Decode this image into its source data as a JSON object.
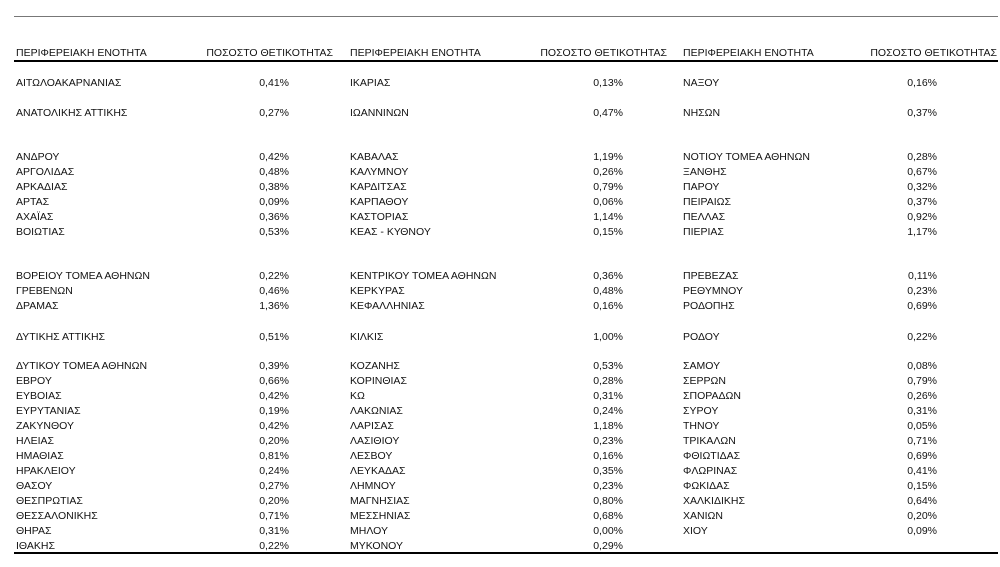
{
  "headers": [
    {
      "region": "ΠΕΡΙΦΕΡΕΙΑΚΗ ΕΝΟΤΗΤΑ",
      "rate": "ΠΟΣΟΣΤΟ ΘΕΤΙΚΟΤΗΤΑΣ"
    },
    {
      "region": "ΠΕΡΙΦΕΡΕΙΑΚΗ ΕΝΟΤΗΤΑ",
      "rate": "ΠΟΣΟΣΤΟ ΘΕΤΙΚΟΤΗΤΑΣ"
    },
    {
      "region": "ΠΕΡΙΦΕΡΕΙΑΚΗ ΕΝΟΤΗΤΑ",
      "rate": "ΠΟΣΟΣΤΟ ΘΕΤΙΚΟΤΗΤΑΣ"
    }
  ],
  "blocks": [
    [
      [
        [
          "ΑΙΤΩΛΟΑΚΑΡΝΑΝΙΑΣ",
          "0,41%"
        ],
        [
          "ΙΚΑΡΙΑΣ",
          "0,13%"
        ],
        [
          "ΝΑΞΟΥ",
          "0,16%"
        ]
      ]
    ],
    [
      [
        [
          "ΑΝΑΤΟΛΙΚΗΣ ΑΤΤΙΚΗΣ",
          "0,27%"
        ],
        [
          "ΙΩΑΝΝΙΝΩΝ",
          "0,47%"
        ],
        [
          "ΝΗΣΩΝ",
          "0,37%"
        ]
      ]
    ],
    [
      [
        [
          "ΑΝΔΡΟΥ",
          "0,42%"
        ],
        [
          "ΚΑΒΑΛΑΣ",
          "1,19%"
        ],
        [
          "ΝΟΤΙΟΥ ΤΟΜΕΑ ΑΘΗΝΩΝ",
          "0,28%"
        ]
      ],
      [
        [
          "ΑΡΓΟΛΙΔΑΣ",
          "0,48%"
        ],
        [
          "ΚΑΛΥΜΝΟΥ",
          "0,26%"
        ],
        [
          "ΞΑΝΘΗΣ",
          "0,67%"
        ]
      ],
      [
        [
          "ΑΡΚΑΔΙΑΣ",
          "0,38%"
        ],
        [
          "ΚΑΡΔΙΤΣΑΣ",
          "0,79%"
        ],
        [
          "ΠΑΡΟΥ",
          "0,32%"
        ]
      ],
      [
        [
          "ΑΡΤΑΣ",
          "0,09%"
        ],
        [
          "ΚΑΡΠΑΘΟΥ",
          "0,06%"
        ],
        [
          "ΠΕΙΡΑΙΩΣ",
          "0,37%"
        ]
      ],
      [
        [
          "ΑΧΑΪΑΣ",
          "0,36%"
        ],
        [
          "ΚΑΣΤΟΡΙΑΣ",
          "1,14%"
        ],
        [
          "ΠΕΛΛΑΣ",
          "0,92%"
        ]
      ],
      [
        [
          "ΒΟΙΩΤΙΑΣ",
          "0,53%"
        ],
        [
          "ΚΕΑΣ - ΚΥΘΝΟΥ",
          "0,15%"
        ],
        [
          "ΠΙΕΡΙΑΣ",
          "1,17%"
        ]
      ]
    ],
    [
      [
        [
          "ΒΟΡΕΙΟΥ ΤΟΜΕΑ ΑΘΗΝΩΝ",
          "0,22%"
        ],
        [
          "ΚΕΝΤΡΙΚΟΥ ΤΟΜΕΑ ΑΘΗΝΩΝ",
          "0,36%"
        ],
        [
          "ΠΡΕΒΕΖΑΣ",
          "0,11%"
        ]
      ],
      [
        [
          "ΓΡΕΒΕΝΩΝ",
          "0,46%"
        ],
        [
          "ΚΕΡΚΥΡΑΣ",
          "0,48%"
        ],
        [
          "ΡΕΘΥΜΝΟΥ",
          "0,23%"
        ]
      ],
      [
        [
          "ΔΡΑΜΑΣ",
          "1,36%"
        ],
        [
          "ΚΕΦΑΛΛΗΝΙΑΣ",
          "0,16%"
        ],
        [
          "ΡΟΔΟΠΗΣ",
          "0,69%"
        ]
      ]
    ],
    [
      [
        [
          "ΔΥΤΙΚΗΣ ΑΤΤΙΚΗΣ",
          "0,51%"
        ],
        [
          "ΚΙΛΚΙΣ",
          "1,00%"
        ],
        [
          "ΡΟΔΟΥ",
          "0,22%"
        ]
      ]
    ],
    [
      [
        [
          "ΔΥΤΙΚΟΥ ΤΟΜΕΑ ΑΘΗΝΩΝ",
          "0,39%"
        ],
        [
          "ΚΟΖΑΝΗΣ",
          "0,53%"
        ],
        [
          "ΣΑΜΟΥ",
          "0,08%"
        ]
      ],
      [
        [
          "ΕΒΡΟΥ",
          "0,66%"
        ],
        [
          "ΚΟΡΙΝΘΙΑΣ",
          "0,28%"
        ],
        [
          "ΣΕΡΡΩΝ",
          "0,79%"
        ]
      ],
      [
        [
          "ΕΥΒΟΙΑΣ",
          "0,42%"
        ],
        [
          "ΚΩ",
          "0,31%"
        ],
        [
          "ΣΠΟΡΑΔΩΝ",
          "0,26%"
        ]
      ],
      [
        [
          "ΕΥΡΥΤΑΝΙΑΣ",
          "0,19%"
        ],
        [
          "ΛΑΚΩΝΙΑΣ",
          "0,24%"
        ],
        [
          "ΣΥΡΟΥ",
          "0,31%"
        ]
      ],
      [
        [
          "ΖΑΚΥΝΘΟΥ",
          "0,42%"
        ],
        [
          "ΛΑΡΙΣΑΣ",
          "1,18%"
        ],
        [
          "ΤΗΝΟΥ",
          "0,05%"
        ]
      ],
      [
        [
          "ΗΛΕΙΑΣ",
          "0,20%"
        ],
        [
          "ΛΑΣΙΘΙΟΥ",
          "0,23%"
        ],
        [
          "ΤΡΙΚΑΛΩΝ",
          "0,71%"
        ]
      ],
      [
        [
          "ΗΜΑΘΙΑΣ",
          "0,81%"
        ],
        [
          "ΛΕΣΒΟΥ",
          "0,16%"
        ],
        [
          "ΦΘΙΩΤΙΔΑΣ",
          "0,69%"
        ]
      ],
      [
        [
          "ΗΡΑΚΛΕΙΟΥ",
          "0,24%"
        ],
        [
          "ΛΕΥΚΑΔΑΣ",
          "0,35%"
        ],
        [
          "ΦΛΩΡΙΝΑΣ",
          "0,41%"
        ]
      ],
      [
        [
          "ΘΑΣΟΥ",
          "0,27%"
        ],
        [
          "ΛΗΜΝΟΥ",
          "0,23%"
        ],
        [
          "ΦΩΚΙΔΑΣ",
          "0,15%"
        ]
      ],
      [
        [
          "ΘΕΣΠΡΩΤΙΑΣ",
          "0,20%"
        ],
        [
          "ΜΑΓΝΗΣΙΑΣ",
          "0,80%"
        ],
        [
          "ΧΑΛΚΙΔΙΚΗΣ",
          "0,64%"
        ]
      ],
      [
        [
          "ΘΕΣΣΑΛΟΝΙΚΗΣ",
          "0,71%"
        ],
        [
          "ΜΕΣΣΗΝΙΑΣ",
          "0,68%"
        ],
        [
          "ΧΑΝΙΩΝ",
          "0,20%"
        ]
      ],
      [
        [
          "ΘΗΡΑΣ",
          "0,31%"
        ],
        [
          "ΜΗΛΟΥ",
          "0,00%"
        ],
        [
          "ΧΙΟΥ",
          "0,09%"
        ]
      ],
      [
        [
          "ΙΘΑΚΗΣ",
          "0,22%"
        ],
        [
          "ΜΥΚΟΝΟΥ",
          "0,29%"
        ]
      ]
    ]
  ]
}
